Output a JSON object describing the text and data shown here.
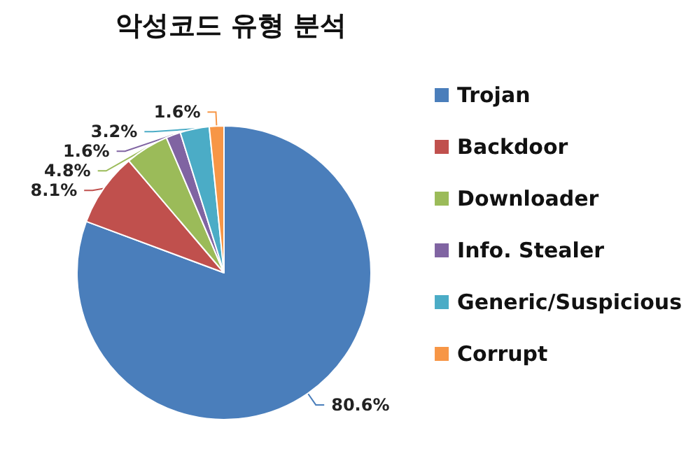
{
  "chart_data": {
    "type": "pie",
    "title": "악성코드 유형 분석",
    "categories": [
      "Trojan",
      "Backdoor",
      "Downloader",
      "Info. Stealer",
      "Generic/Suspicious",
      "Corrupt"
    ],
    "values": [
      80.6,
      8.1,
      4.8,
      1.6,
      3.2,
      1.6
    ],
    "colors": [
      "#4a7ebb",
      "#c0504d",
      "#9bbb59",
      "#8064a2",
      "#4bacc6",
      "#f79646"
    ],
    "value_labels": [
      "80.6%",
      "8.1%",
      "4.8%",
      "1.6%",
      "3.2%",
      "1.6%"
    ],
    "legend": "right"
  }
}
